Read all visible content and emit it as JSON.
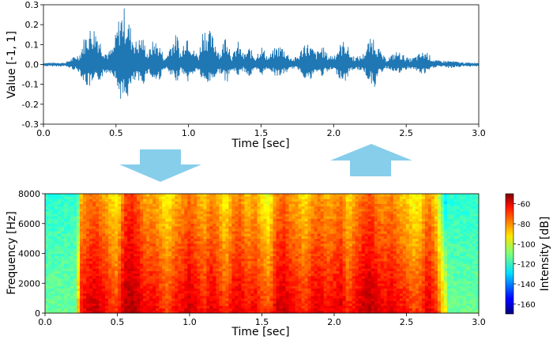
{
  "chart_data": [
    {
      "type": "line",
      "xlabel": "Time [sec]",
      "ylabel": "Value [-1, 1]",
      "xlim": [
        0.0,
        3.0
      ],
      "ylim": [
        -0.3,
        0.3
      ],
      "x_ticks": [
        "0.0",
        "0.5",
        "1.0",
        "1.5",
        "2.0",
        "2.5",
        "3.0"
      ],
      "y_ticks": [
        "-0.3",
        "-0.2",
        "-0.1",
        "0.0",
        "0.1",
        "0.2",
        "0.3"
      ],
      "color": "#1f77b4",
      "grid": false,
      "envelope": {
        "time": [
          0.0,
          0.15,
          0.25,
          0.28,
          0.31,
          0.34,
          0.37,
          0.4,
          0.44,
          0.48,
          0.52,
          0.55,
          0.58,
          0.61,
          0.64,
          0.68,
          0.72,
          0.76,
          0.8,
          0.84,
          0.88,
          0.92,
          0.95,
          0.98,
          1.0,
          1.03,
          1.07,
          1.1,
          1.14,
          1.18,
          1.22,
          1.26,
          1.3,
          1.34,
          1.38,
          1.42,
          1.46,
          1.5,
          1.55,
          1.6,
          1.64,
          1.68,
          1.72,
          1.76,
          1.8,
          1.84,
          1.88,
          1.92,
          1.96,
          2.0,
          2.04,
          2.08,
          2.12,
          2.16,
          2.2,
          2.24,
          2.28,
          2.32,
          2.36,
          2.4,
          2.44,
          2.48,
          2.52,
          2.56,
          2.6,
          2.64,
          2.68,
          2.72,
          2.8,
          2.9,
          3.0
        ],
        "upper": [
          0.01,
          0.01,
          0.06,
          0.14,
          0.18,
          0.2,
          0.18,
          0.11,
          0.06,
          0.09,
          0.24,
          0.3,
          0.25,
          0.17,
          0.12,
          0.15,
          0.06,
          0.13,
          0.1,
          0.03,
          0.12,
          0.16,
          0.05,
          0.18,
          0.17,
          0.08,
          0.05,
          0.2,
          0.18,
          0.13,
          0.06,
          0.18,
          0.04,
          0.12,
          0.05,
          0.09,
          0.04,
          0.1,
          0.04,
          0.09,
          0.1,
          0.06,
          0.03,
          0.05,
          0.12,
          0.1,
          0.06,
          0.1,
          0.05,
          0.05,
          0.1,
          0.13,
          0.05,
          0.04,
          0.05,
          0.12,
          0.15,
          0.07,
          0.03,
          0.05,
          0.07,
          0.05,
          0.03,
          0.04,
          0.06,
          0.07,
          0.03,
          0.02,
          0.02,
          0.01,
          0.01
        ],
        "lower": [
          -0.01,
          -0.01,
          -0.04,
          -0.1,
          -0.12,
          -0.12,
          -0.1,
          -0.07,
          -0.04,
          -0.05,
          -0.15,
          -0.21,
          -0.17,
          -0.12,
          -0.08,
          -0.12,
          -0.04,
          -0.09,
          -0.08,
          -0.02,
          -0.07,
          -0.09,
          -0.03,
          -0.08,
          -0.09,
          -0.05,
          -0.03,
          -0.11,
          -0.1,
          -0.07,
          -0.04,
          -0.1,
          -0.03,
          -0.06,
          -0.03,
          -0.07,
          -0.03,
          -0.06,
          -0.02,
          -0.06,
          -0.06,
          -0.04,
          -0.02,
          -0.03,
          -0.07,
          -0.09,
          -0.04,
          -0.06,
          -0.04,
          -0.03,
          -0.07,
          -0.09,
          -0.03,
          -0.03,
          -0.03,
          -0.08,
          -0.12,
          -0.05,
          -0.02,
          -0.03,
          -0.05,
          -0.04,
          -0.02,
          -0.03,
          -0.05,
          -0.05,
          -0.02,
          -0.01,
          -0.02,
          -0.01,
          -0.01
        ]
      }
    },
    {
      "type": "heatmap",
      "xlabel": "Time [sec]",
      "ylabel": "Frequency [Hz]",
      "xlim": [
        0.0,
        3.0
      ],
      "ylim": [
        0,
        8000
      ],
      "x_ticks": [
        "0.0",
        "0.5",
        "1.0",
        "1.5",
        "2.0",
        "2.5",
        "3.0"
      ],
      "y_ticks": [
        "0",
        "2000",
        "4000",
        "6000",
        "8000"
      ],
      "colormap": "jet",
      "colorbar": {
        "label": "Intensity [dB]",
        "range": [
          -170,
          -50
        ],
        "ticks": [
          "-60",
          "-80",
          "-100",
          "-120",
          "-140",
          "-160"
        ]
      },
      "time_bins": [
        0.0,
        0.1,
        0.2,
        0.25,
        0.3,
        0.35,
        0.4,
        0.45,
        0.5,
        0.55,
        0.6,
        0.65,
        0.7,
        0.75,
        0.8,
        0.85,
        0.9,
        0.95,
        1.0,
        1.05,
        1.1,
        1.15,
        1.2,
        1.25,
        1.3,
        1.35,
        1.4,
        1.45,
        1.5,
        1.55,
        1.6,
        1.65,
        1.7,
        1.75,
        1.8,
        1.85,
        1.9,
        1.95,
        2.0,
        2.05,
        2.1,
        2.15,
        2.2,
        2.25,
        2.3,
        2.35,
        2.4,
        2.45,
        2.5,
        2.55,
        2.6,
        2.65,
        2.7,
        2.8,
        2.9,
        3.0
      ],
      "low_band_db": [
        -115,
        -112,
        -108,
        -64,
        -60,
        -58,
        -62,
        -66,
        -70,
        -56,
        -54,
        -58,
        -64,
        -62,
        -66,
        -70,
        -64,
        -62,
        -58,
        -62,
        -66,
        -60,
        -64,
        -70,
        -62,
        -60,
        -66,
        -62,
        -68,
        -72,
        -60,
        -58,
        -62,
        -64,
        -68,
        -62,
        -60,
        -64,
        -62,
        -60,
        -68,
        -62,
        -58,
        -56,
        -60,
        -62,
        -60,
        -64,
        -66,
        -70,
        -68,
        -60,
        -66,
        -100,
        -108,
        -112
      ],
      "annotations": [
        "down-arrow",
        "up-arrow"
      ]
    }
  ],
  "colors": {
    "waveform": "#1f77b4",
    "arrow": "#87ceeb"
  }
}
